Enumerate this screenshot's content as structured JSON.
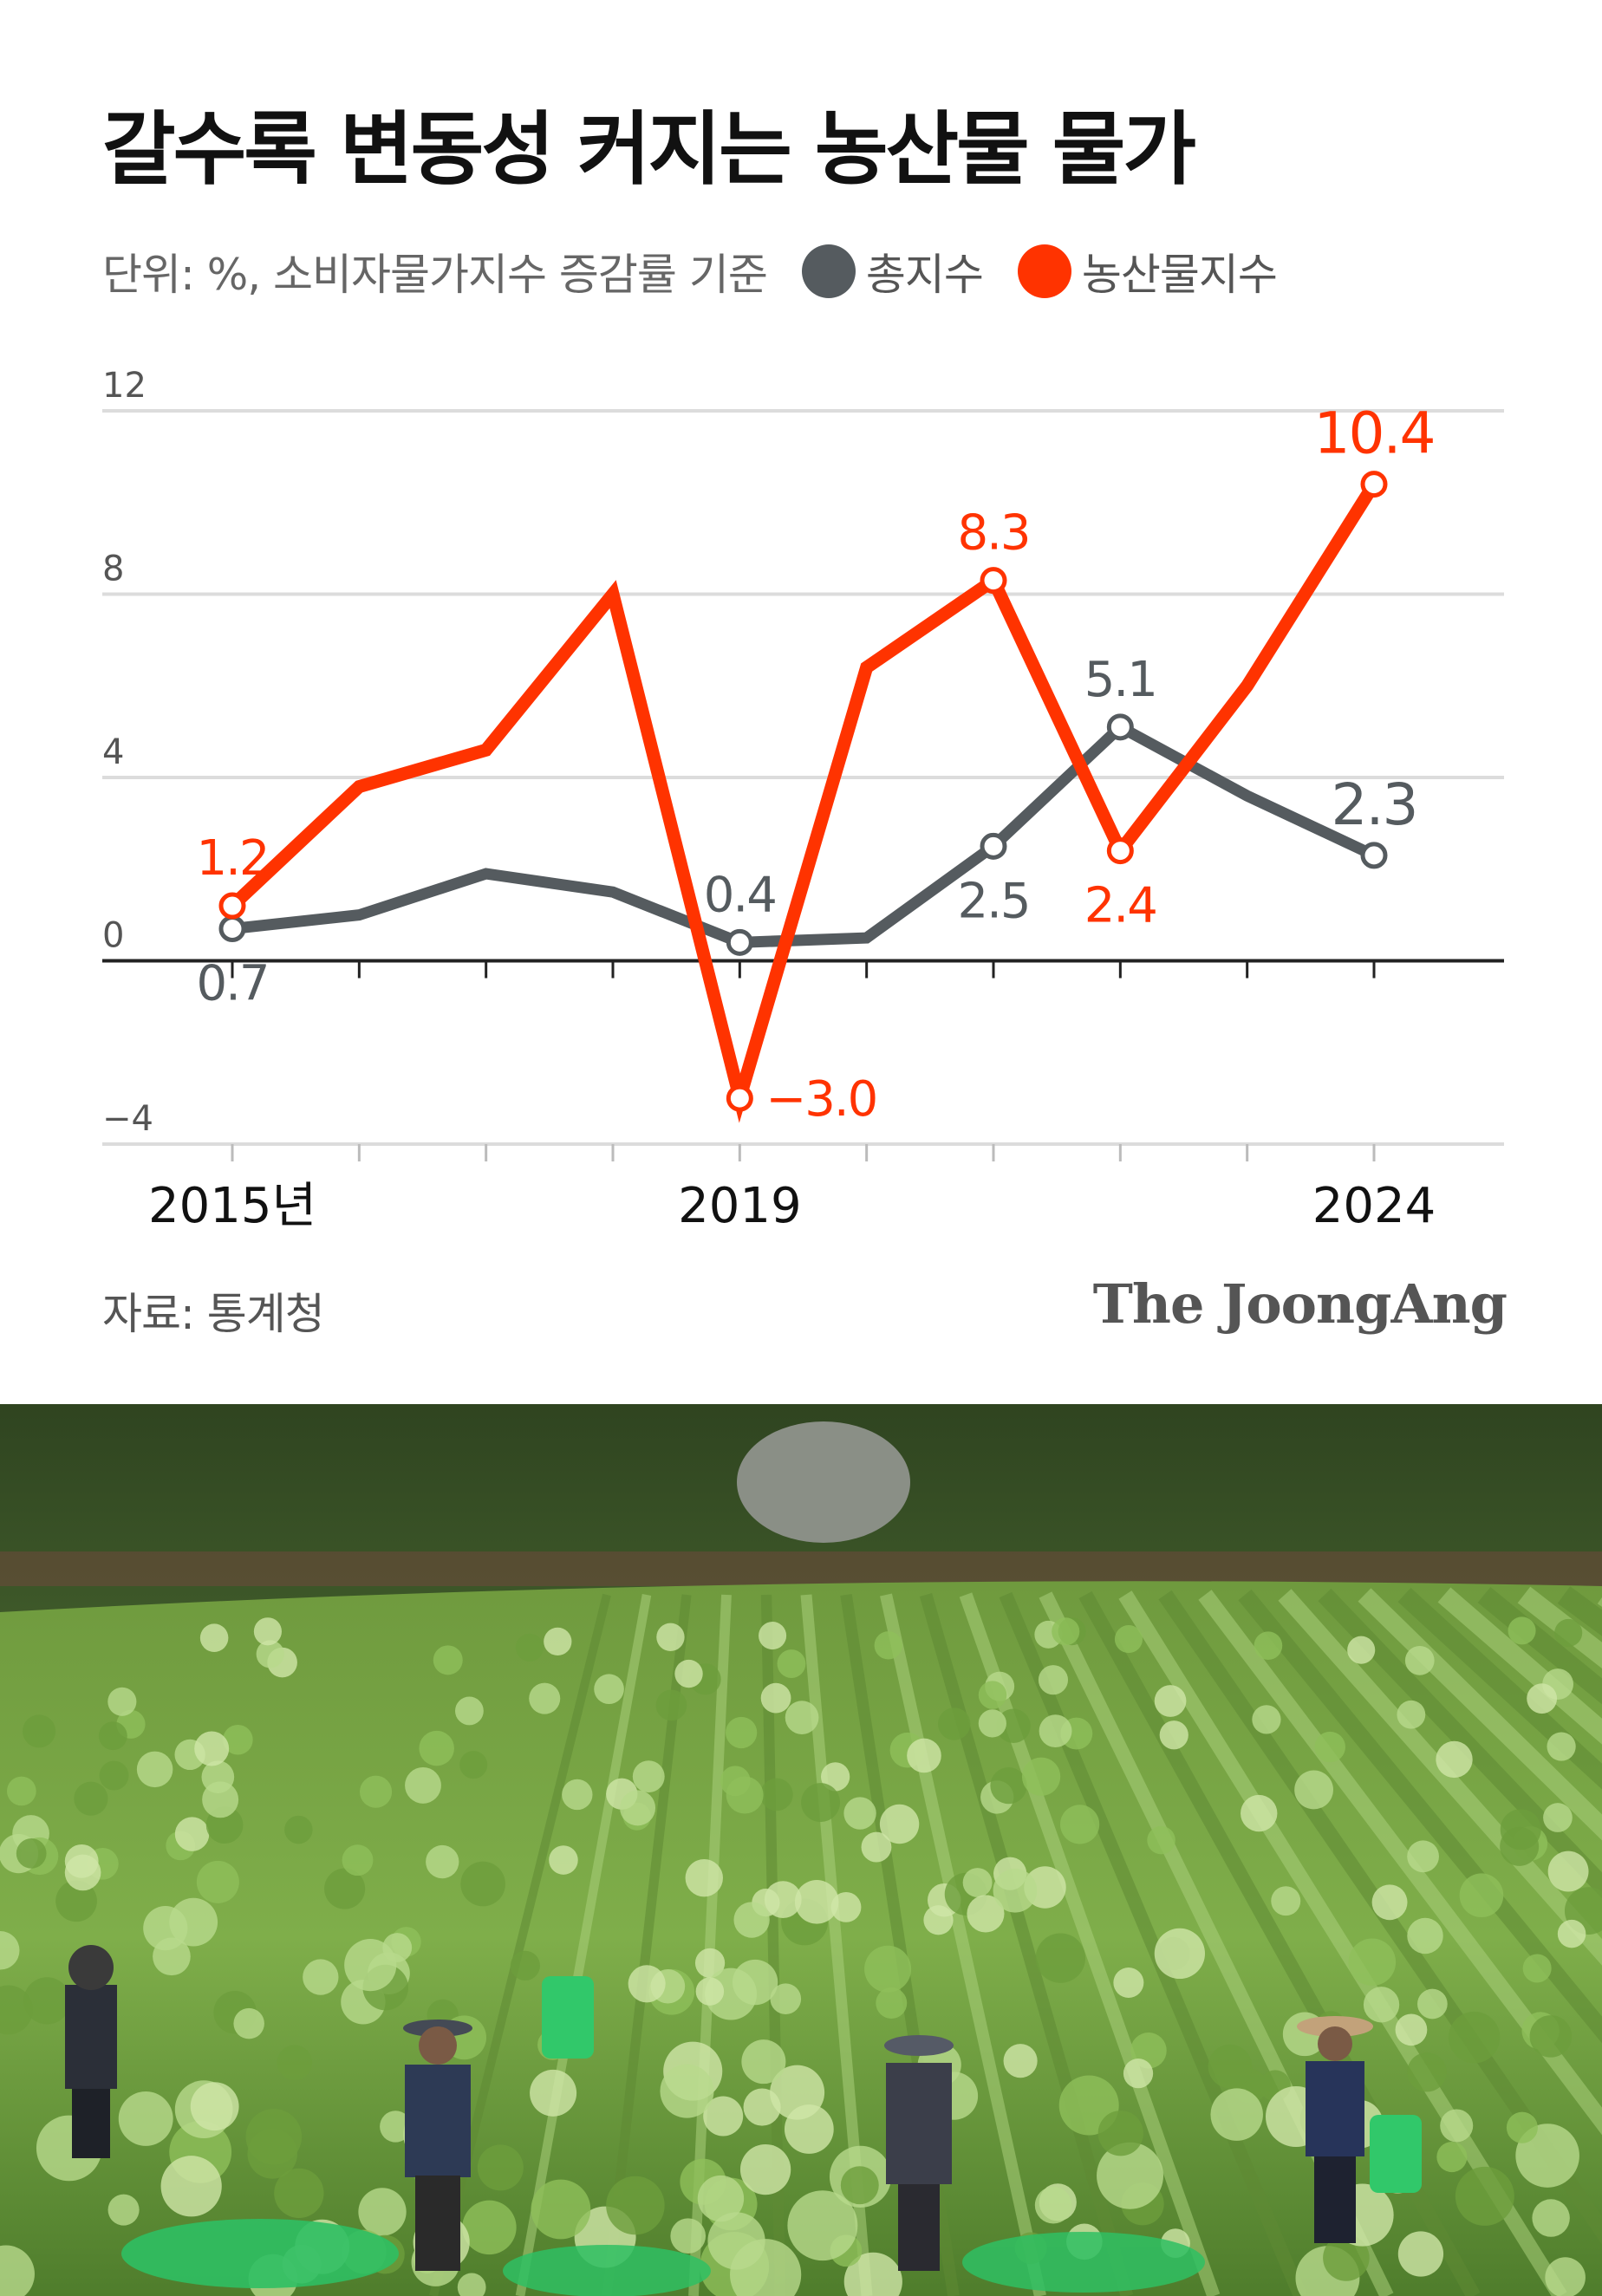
{
  "chart_data": {
    "type": "line",
    "title": "갈수록 변동성 커지는 농산물 물가",
    "subtitle": "단위: %, 소비자물가지수 증감률 기준",
    "source": "자료: 통계청",
    "brand": "The JoongAng",
    "x": [
      2015,
      2016,
      2017,
      2018,
      2019,
      2020,
      2021,
      2022,
      2023,
      2024
    ],
    "x_tick_labels": [
      {
        "x": 2015,
        "label": "2015년"
      },
      {
        "x": 2019,
        "label": "2019"
      },
      {
        "x": 2024,
        "label": "2024"
      }
    ],
    "ylim": [
      -4,
      12
    ],
    "yticks": [
      -4,
      0,
      4,
      8,
      12
    ],
    "ytick_labels": [
      "−4",
      "0",
      "4",
      "8",
      "12"
    ],
    "grid": true,
    "legend_position": "top",
    "series": [
      {
        "name": "총지수",
        "color": "#555b5f",
        "values": [
          0.7,
          1.0,
          1.9,
          1.5,
          0.4,
          0.5,
          2.5,
          5.1,
          3.6,
          2.3
        ],
        "labels": [
          {
            "x": 2015,
            "text": "0.7",
            "pos": "below"
          },
          {
            "x": 2019,
            "text": "0.4",
            "pos": "above"
          },
          {
            "x": 2021,
            "text": "2.5",
            "pos": "below"
          },
          {
            "x": 2022,
            "text": "5.1",
            "pos": "above"
          },
          {
            "x": 2024,
            "text": "2.3",
            "pos": "above"
          }
        ]
      },
      {
        "name": "농산물지수",
        "color": "#ff3300",
        "values": [
          1.2,
          3.8,
          4.6,
          8.0,
          -3.0,
          6.4,
          8.3,
          2.4,
          6.0,
          10.4
        ],
        "labels": [
          {
            "x": 2015,
            "text": "1.2",
            "pos": "above"
          },
          {
            "x": 2019,
            "text": "−3.0",
            "pos": "right"
          },
          {
            "x": 2021,
            "text": "8.3",
            "pos": "above"
          },
          {
            "x": 2022,
            "text": "2.4",
            "pos": "below"
          },
          {
            "x": 2024,
            "text": "10.4",
            "pos": "above"
          }
        ]
      }
    ]
  },
  "photo": {
    "icon": "cabbage-field-photo"
  }
}
